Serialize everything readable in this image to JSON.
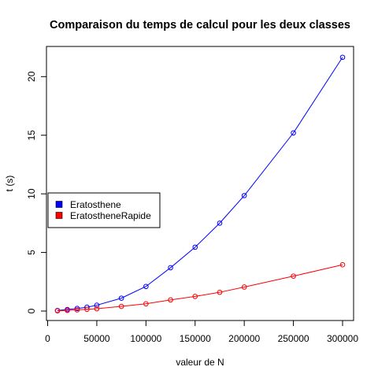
{
  "chart_data": {
    "type": "line",
    "title": "Comparaison du temps de calcul pour les deux classes",
    "xlabel": "valeur de N",
    "ylabel": "t (s)",
    "xlim": [
      10000,
      300000
    ],
    "ylim": [
      0,
      21.7
    ],
    "x_ticks": [
      0,
      50000,
      100000,
      150000,
      200000,
      250000,
      300000
    ],
    "y_ticks": [
      0,
      5,
      10,
      15,
      20
    ],
    "grid": false,
    "legend_position": "left",
    "x": [
      10000,
      20000,
      30000,
      40000,
      50000,
      75000,
      100000,
      125000,
      150000,
      175000,
      200000,
      250000,
      300000
    ],
    "series": [
      {
        "name": "Eratosthene",
        "color": "#0000ff",
        "values": [
          0.05,
          0.13,
          0.22,
          0.33,
          0.5,
          1.1,
          2.1,
          3.7,
          5.45,
          7.5,
          9.85,
          15.2,
          21.65
        ]
      },
      {
        "name": "EratostheneRapide",
        "color": "#ff0000",
        "values": [
          0.02,
          0.06,
          0.1,
          0.15,
          0.2,
          0.4,
          0.62,
          0.95,
          1.25,
          1.6,
          2.05,
          2.98,
          3.95
        ]
      }
    ]
  }
}
